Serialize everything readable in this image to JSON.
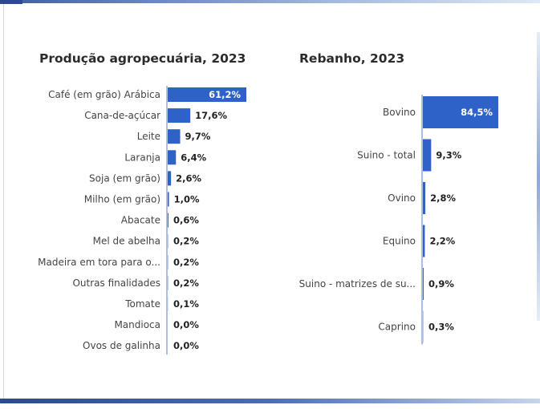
{
  "colors": {
    "bar": "#2f62c9",
    "axis": "#5b7fce"
  },
  "chart_data": [
    {
      "type": "bar",
      "orientation": "horizontal",
      "title": "Produção agropecuária, 2023",
      "categories": [
        "Café (em grão) Arábica",
        "Cana-de-açúcar",
        "Leite",
        "Laranja",
        "Soja (em grão)",
        "Milho (em grão)",
        "Abacate",
        "Mel de abelha",
        "Madeira em tora para o...",
        "Outras finalidades",
        "Tomate",
        "Mandioca",
        "Ovos de galinha"
      ],
      "values": [
        61.2,
        17.6,
        9.7,
        6.4,
        2.6,
        1.0,
        0.6,
        0.2,
        0.2,
        0.2,
        0.1,
        0.0,
        0.0
      ],
      "labels": [
        "61,2%",
        "17,6%",
        "9,7%",
        "6,4%",
        "2,6%",
        "1,0%",
        "0,6%",
        "0,2%",
        "0,2%",
        "0,2%",
        "0,1%",
        "0,0%",
        "0,0%"
      ],
      "unit": "%",
      "xlim": [
        0,
        61.2
      ]
    },
    {
      "type": "bar",
      "orientation": "horizontal",
      "title": "Rebanho, 2023",
      "categories": [
        "Bovino",
        "Suino - total",
        "Ovino",
        "Equino",
        "Suino - matrizes de su...",
        "Caprino"
      ],
      "values": [
        84.5,
        9.3,
        2.8,
        2.2,
        0.9,
        0.3
      ],
      "labels": [
        "84,5%",
        "9,3%",
        "2,8%",
        "2,2%",
        "0,9%",
        "0,3%"
      ],
      "unit": "%",
      "xlim": [
        0,
        84.5
      ]
    }
  ]
}
